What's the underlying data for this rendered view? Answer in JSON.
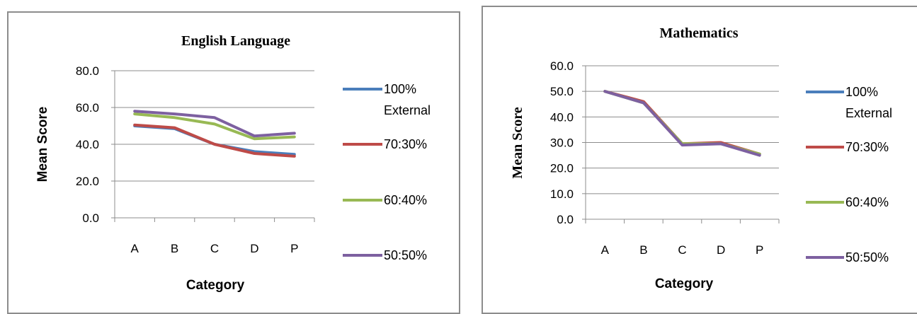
{
  "chart_data": [
    {
      "type": "line",
      "title": "English Language",
      "xlabel": "Category",
      "ylabel": "Mean Score",
      "categories": [
        "A",
        "B",
        "C",
        "D",
        "P"
      ],
      "ylim": [
        0,
        80
      ],
      "yticks": [
        "0.0",
        "20.0",
        "40.0",
        "60.0",
        "80.0"
      ],
      "grid": true,
      "legend_position": "right",
      "series": [
        {
          "name_lines": [
            "100%",
            "External"
          ],
          "color": "#4a7ebb",
          "values": [
            50,
            48.5,
            40,
            36,
            34.5
          ]
        },
        {
          "name_lines": [
            "70:30%"
          ],
          "color": "#be4b48",
          "values": [
            50.5,
            49,
            40,
            35,
            33.5
          ]
        },
        {
          "name_lines": [
            "60:40%"
          ],
          "color": "#98b954",
          "values": [
            56.5,
            54.5,
            51,
            43,
            44
          ]
        },
        {
          "name_lines": [
            "50:50%"
          ],
          "color": "#7d60a0",
          "values": [
            58,
            56.5,
            54.5,
            44.5,
            46
          ]
        }
      ]
    },
    {
      "type": "line",
      "title": "Mathematics",
      "xlabel": "Category",
      "ylabel": "Mean Score",
      "categories": [
        "A",
        "B",
        "C",
        "D",
        "P"
      ],
      "ylim": [
        0,
        60
      ],
      "yticks": [
        "0.0",
        "10.0",
        "20.0",
        "30.0",
        "40.0",
        "50.0",
        "60.0"
      ],
      "grid": true,
      "legend_position": "right",
      "series": [
        {
          "name_lines": [
            "100%",
            "External"
          ],
          "color": "#4a7ebb",
          "values": [
            50,
            45.5,
            29.5,
            29.5,
            25.5
          ]
        },
        {
          "name_lines": [
            "70:30%"
          ],
          "color": "#be4b48",
          "values": [
            50,
            46,
            29.5,
            30,
            25.5
          ]
        },
        {
          "name_lines": [
            "60:40%"
          ],
          "color": "#98b954",
          "values": [
            50,
            45.5,
            29.5,
            29.5,
            25.5
          ]
        },
        {
          "name_lines": [
            "50:50%"
          ],
          "color": "#7d60a0",
          "values": [
            50,
            45.5,
            29,
            29.5,
            25
          ]
        }
      ]
    }
  ]
}
